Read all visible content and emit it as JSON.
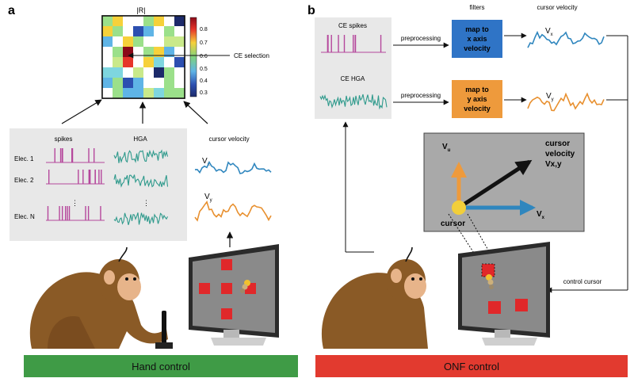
{
  "panel_a": {
    "letter": "a",
    "matrix_title": "|R|",
    "colorbar_ticks": [
      "0.8",
      "0.7",
      "0.6",
      "0.5",
      "0.4",
      "0.3"
    ],
    "ce_selection": "CE selection",
    "spikes_label": "spikes",
    "hga_label": "HGA",
    "cursor_velocity_label": "cursor velocity",
    "electrodes": [
      "Elec. 1",
      "Elec. 2",
      "Elec. N"
    ],
    "dots": "⋮",
    "vx_main": "V",
    "vx_sub": "x",
    "vy_main": "V",
    "vy_sub": "y",
    "footer": "Hand control"
  },
  "panel_b": {
    "letter": "b",
    "ce_spikes": "CE spikes",
    "ce_hga": "CE HGA",
    "preprocessing_1": "preprocessing",
    "preprocessing_2": "preprocessing",
    "filters_label": "filters",
    "cursor_velocity_label": "cursor velocity",
    "filter_x": [
      "map to",
      "x axis",
      "velocity"
    ],
    "filter_y": [
      "map to",
      "y axis",
      "velocity"
    ],
    "vx_main": "V",
    "vx_sub": "x",
    "vy_main": "V",
    "vy_sub": "y",
    "inset": {
      "vu_main": "V",
      "vu_sub": "u",
      "cursor_velocity": [
        "cursor",
        "velocity",
        "Vx,y"
      ],
      "cursor_label": "cursor",
      "vx_main": "V",
      "vx_sub": "x"
    },
    "control_cursor": "control cursor",
    "footer": "ONF control"
  },
  "colors": {
    "hand_green": "#3f9b46",
    "onf_red": "#e23a2f",
    "spike_magenta": "#b5479c",
    "hga_teal": "#2f9a8c",
    "vel_blue": "#2f86be",
    "vel_orange": "#e8902f",
    "filter_blue": "#2f74c6",
    "filter_orange": "#ee9a3c",
    "panel_gray": "#e8e8e8"
  }
}
